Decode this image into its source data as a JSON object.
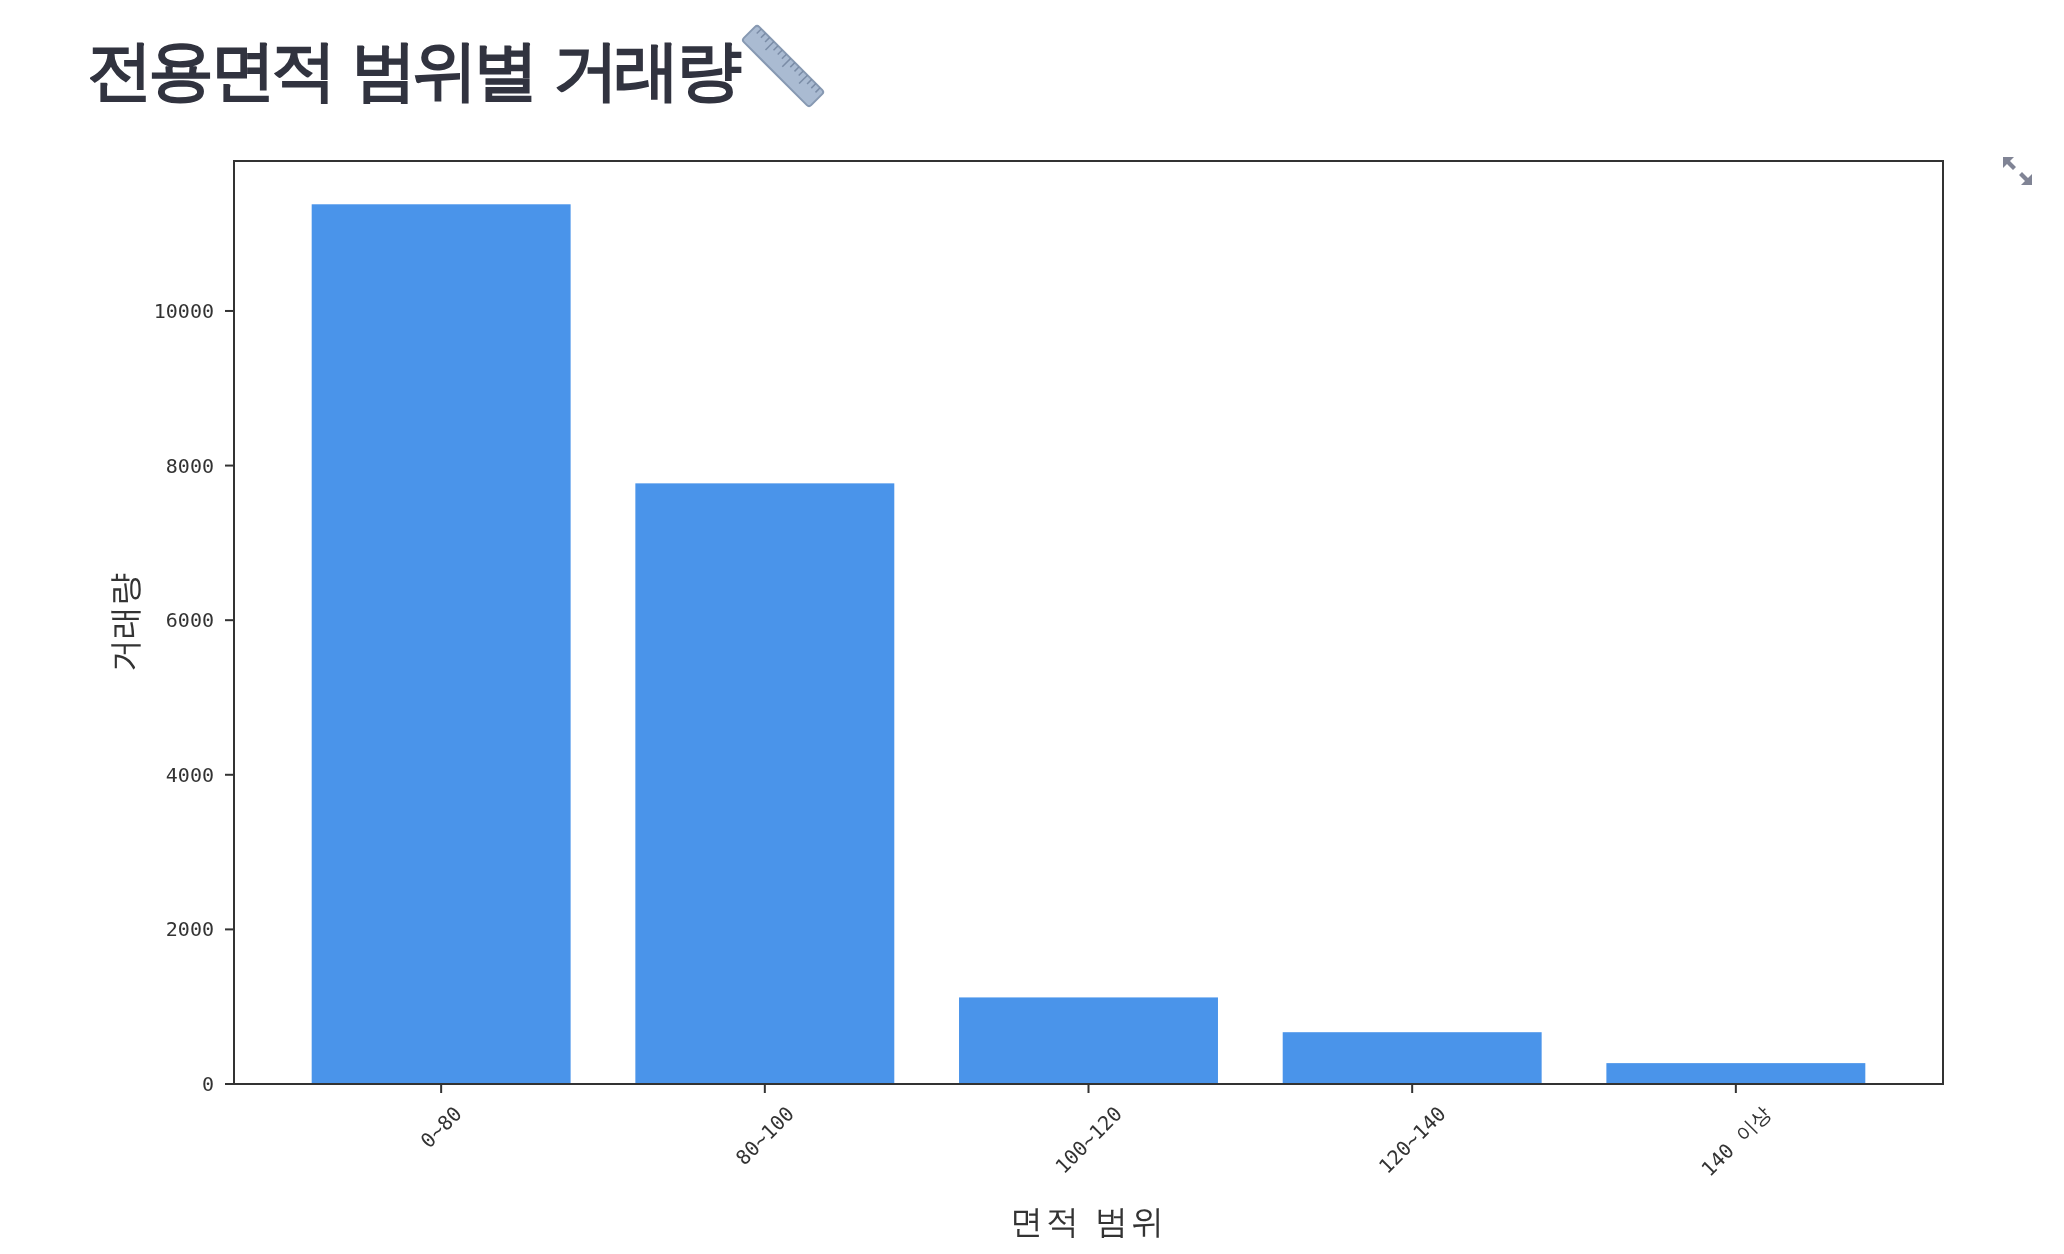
{
  "chart_data": {
    "type": "bar",
    "title": "전용면적 범위별 거래량",
    "xlabel": "면적 범위",
    "ylabel": "거래량",
    "categories": [
      "0~80",
      "80~100",
      "100~120",
      "120~140",
      "140 이상"
    ],
    "values": [
      11380,
      7770,
      1120,
      670,
      270
    ],
    "color": "#4a94ea",
    "ylim": [
      0,
      11940
    ],
    "yticks": [
      0,
      2000,
      4000,
      6000,
      8000,
      10000
    ]
  }
}
